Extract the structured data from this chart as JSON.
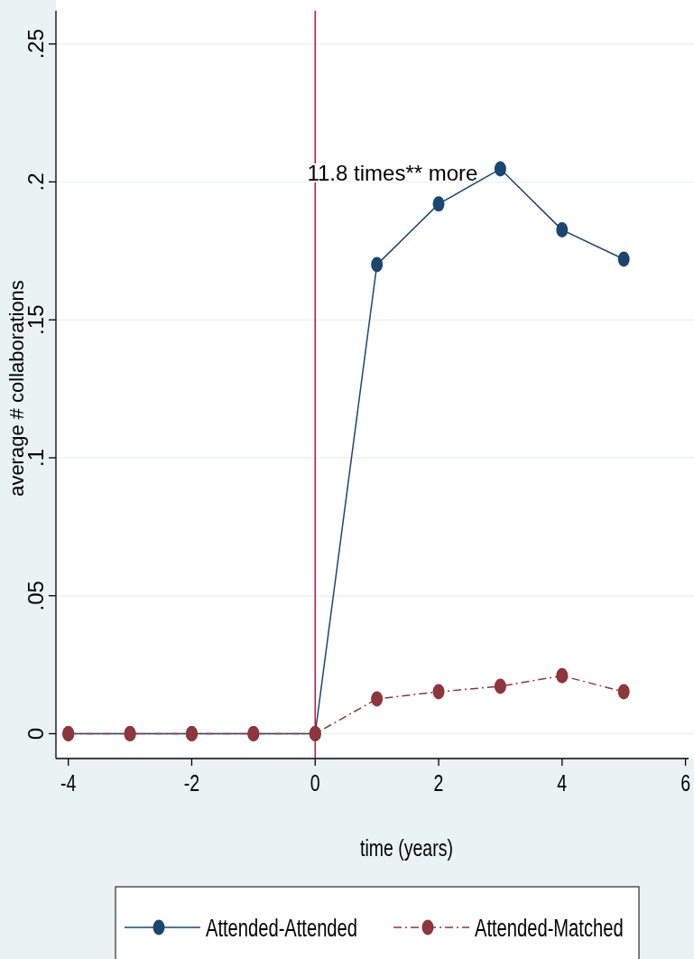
{
  "chart_data": {
    "type": "line",
    "xlabel": "time (years)",
    "ylabel": "average # collaborations",
    "x": [
      -4,
      -3,
      -2,
      -1,
      0,
      1,
      2,
      3,
      4,
      5
    ],
    "series": [
      {
        "name": "Attended-Attended",
        "color": "#1a476f",
        "line_style": "solid",
        "values": [
          0,
          0,
          0,
          0,
          0,
          0.17,
          0.192,
          0.2047,
          0.1826,
          0.172
        ]
      },
      {
        "name": "Attended-Matched",
        "color": "#90353b",
        "line_style": "dashed",
        "values": [
          0,
          0,
          0,
          0,
          0,
          0.0126,
          0.0152,
          0.0172,
          0.021,
          0.0152
        ]
      }
    ],
    "xlim": [
      -4.2,
      6.05
    ],
    "xticks": [
      -4,
      -2,
      0,
      2,
      4,
      6
    ],
    "ylim": [
      -0.009,
      0.262
    ],
    "yticks": [
      {
        "value": 0,
        "label": "0"
      },
      {
        "value": 0.05,
        "label": ".05"
      },
      {
        "value": 0.1,
        "label": ".1"
      },
      {
        "value": 0.15,
        "label": ".15"
      },
      {
        "value": 0.2,
        "label": ".2"
      },
      {
        "value": 0.25,
        "label": ".25"
      }
    ],
    "ref_lines": [
      {
        "axis": "x",
        "value": 0,
        "color": "#c0143c"
      }
    ],
    "annotations": [
      "11.8 times** more"
    ],
    "grid": "y",
    "legend": "bottom",
    "marker": "circle"
  }
}
